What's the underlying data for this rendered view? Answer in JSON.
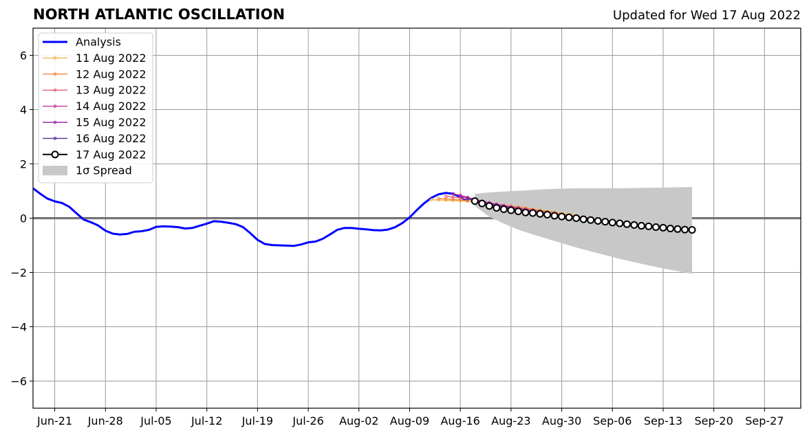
{
  "chart_data": {
    "type": "line",
    "title": "NORTH ATLANTIC OSCILLATION",
    "subtitle": "Updated for Wed 17 Aug 2022",
    "xlabel": "",
    "ylabel": "",
    "ylim": [
      -7,
      7
    ],
    "yticks": [
      -6,
      -4,
      -2,
      0,
      2,
      4,
      6
    ],
    "ytick_labels": [
      "−6",
      "−4",
      "−2",
      "0",
      "2",
      "4",
      "6"
    ],
    "xlim": [
      "2022-06-18",
      "2022-10-02"
    ],
    "xticks": [
      "2022-06-21",
      "2022-06-28",
      "2022-07-05",
      "2022-07-12",
      "2022-07-19",
      "2022-07-26",
      "2022-08-02",
      "2022-08-09",
      "2022-08-16",
      "2022-08-23",
      "2022-08-30",
      "2022-09-06",
      "2022-09-13",
      "2022-09-20",
      "2022-09-27"
    ],
    "xtick_labels": [
      "Jun-21",
      "Jun-28",
      "Jul-05",
      "Jul-12",
      "Jul-19",
      "Jul-26",
      "Aug-02",
      "Aug-09",
      "Aug-16",
      "Aug-23",
      "Aug-30",
      "Sep-06",
      "Sep-13",
      "Sep-20",
      "Sep-27"
    ],
    "grid": true,
    "legend_position": "top-left",
    "colors": {
      "analysis": "#0000ff",
      "spread": "#c8c8c8",
      "zero_line": "#555555",
      "grid": "#9a9a9a"
    },
    "analysis": {
      "name": "Analysis",
      "x": [
        "2022-06-18",
        "2022-06-19",
        "2022-06-20",
        "2022-06-21",
        "2022-06-22",
        "2022-06-23",
        "2022-06-24",
        "2022-06-25",
        "2022-06-26",
        "2022-06-27",
        "2022-06-28",
        "2022-06-29",
        "2022-06-30",
        "2022-07-01",
        "2022-07-02",
        "2022-07-03",
        "2022-07-04",
        "2022-07-05",
        "2022-07-06",
        "2022-07-07",
        "2022-07-08",
        "2022-07-09",
        "2022-07-10",
        "2022-07-11",
        "2022-07-12",
        "2022-07-13",
        "2022-07-14",
        "2022-07-15",
        "2022-07-16",
        "2022-07-17",
        "2022-07-18",
        "2022-07-19",
        "2022-07-20",
        "2022-07-21",
        "2022-07-22",
        "2022-07-23",
        "2022-07-24",
        "2022-07-25",
        "2022-07-26",
        "2022-07-27",
        "2022-07-28",
        "2022-07-29",
        "2022-07-30",
        "2022-07-31",
        "2022-08-01",
        "2022-08-02",
        "2022-08-03",
        "2022-08-04",
        "2022-08-05",
        "2022-08-06",
        "2022-08-07",
        "2022-08-08",
        "2022-08-09",
        "2022-08-10",
        "2022-08-11",
        "2022-08-12",
        "2022-08-13",
        "2022-08-14",
        "2022-08-15",
        "2022-08-16",
        "2022-08-17"
      ],
      "y": [
        1.1,
        0.9,
        0.72,
        0.62,
        0.56,
        0.42,
        0.18,
        -0.05,
        -0.15,
        -0.27,
        -0.46,
        -0.57,
        -0.6,
        -0.58,
        -0.5,
        -0.48,
        -0.43,
        -0.32,
        -0.3,
        -0.31,
        -0.33,
        -0.38,
        -0.36,
        -0.28,
        -0.2,
        -0.11,
        -0.13,
        -0.17,
        -0.22,
        -0.33,
        -0.55,
        -0.8,
        -0.95,
        -0.99,
        -1.0,
        -1.01,
        -1.02,
        -0.97,
        -0.89,
        -0.86,
        -0.76,
        -0.6,
        -0.43,
        -0.36,
        -0.36,
        -0.39,
        -0.41,
        -0.44,
        -0.45,
        -0.42,
        -0.33,
        -0.18,
        0.03,
        0.3,
        0.55,
        0.75,
        0.88,
        0.93,
        0.9,
        0.78,
        0.62
      ]
    },
    "forecasts": [
      {
        "name": "11 Aug 2022",
        "color": "#f5b34a",
        "x_start": "2022-08-12",
        "y": [
          0.68,
          0.67,
          0.66,
          0.65,
          0.64,
          0.63,
          0.61,
          0.58,
          0.54,
          0.51,
          0.48,
          0.45,
          0.42,
          0.38,
          0.34,
          0.3,
          0.26,
          0.22,
          0.18,
          0.14,
          0.1
        ]
      },
      {
        "name": "12 Aug 2022",
        "color": "#f0873e",
        "x_start": "2022-08-13",
        "y": [
          0.72,
          0.71,
          0.69,
          0.67,
          0.64,
          0.6,
          0.56,
          0.52,
          0.49,
          0.46,
          0.43,
          0.4,
          0.36,
          0.32,
          0.28,
          0.24,
          0.2,
          0.16,
          0.12,
          0.08,
          0.04
        ]
      },
      {
        "name": "13 Aug 2022",
        "color": "#e06070",
        "x_start": "2022-08-14",
        "y": [
          0.8,
          0.78,
          0.74,
          0.7,
          0.65,
          0.6,
          0.55,
          0.51,
          0.47,
          0.43,
          0.39,
          0.35,
          0.31,
          0.27,
          0.23,
          0.19,
          0.15,
          0.11,
          0.07,
          0.03,
          0.0
        ]
      },
      {
        "name": "14 Aug 2022",
        "color": "#c23b9c",
        "x_start": "2022-08-15",
        "y": [
          0.9,
          0.84,
          0.77,
          0.7,
          0.63,
          0.57,
          0.52,
          0.47,
          0.42,
          0.37,
          0.32,
          0.27,
          0.22,
          0.17,
          0.13,
          0.09,
          0.05,
          0.01,
          -0.03,
          -0.06,
          -0.09,
          -0.12,
          -0.15,
          -0.17,
          -0.2,
          -0.22,
          -0.24,
          -0.26
        ]
      },
      {
        "name": "15 Aug 2022",
        "color": "#9a2aa8",
        "x_start": "2022-08-16",
        "y": [
          0.82,
          0.74,
          0.66,
          0.6,
          0.54,
          0.49,
          0.44,
          0.39,
          0.34,
          0.29,
          0.24,
          0.19,
          0.15,
          0.11,
          0.07,
          0.03,
          -0.01,
          -0.05,
          -0.08,
          -0.11,
          -0.14,
          -0.17,
          -0.2,
          -0.23,
          -0.25,
          -0.27,
          -0.28
        ]
      },
      {
        "name": "16 Aug 2022",
        "color": "#5a2a9a",
        "x_start": "2022-08-17",
        "y": [
          0.72,
          0.64,
          0.57,
          0.51,
          0.45,
          0.4,
          0.35,
          0.3,
          0.25,
          0.2,
          0.16,
          0.12,
          0.08,
          0.04,
          0.0,
          -0.04,
          -0.08,
          -0.11,
          -0.14,
          -0.17,
          -0.2,
          -0.23,
          -0.26,
          -0.28,
          -0.3,
          -0.32
        ]
      },
      {
        "name": "17 Aug 2022",
        "color": "#000000",
        "x_start": "2022-08-18",
        "y": [
          0.63,
          0.54,
          0.45,
          0.38,
          0.33,
          0.29,
          0.25,
          0.21,
          0.19,
          0.16,
          0.13,
          0.09,
          0.06,
          0.03,
          0.0,
          -0.04,
          -0.07,
          -0.1,
          -0.13,
          -0.16,
          -0.19,
          -0.22,
          -0.25,
          -0.28,
          -0.3,
          -0.33,
          -0.35,
          -0.38,
          -0.4,
          -0.42,
          -0.43
        ]
      }
    ],
    "spread": {
      "name": "1σ Spread",
      "x": [
        "2022-08-18",
        "2022-08-20",
        "2022-08-22",
        "2022-08-24",
        "2022-08-26",
        "2022-08-28",
        "2022-08-30",
        "2022-09-01",
        "2022-09-03",
        "2022-09-05",
        "2022-09-07",
        "2022-09-09",
        "2022-09-11",
        "2022-09-13",
        "2022-09-15",
        "2022-09-17"
      ],
      "upper": [
        0.9,
        0.95,
        0.98,
        1.01,
        1.04,
        1.07,
        1.09,
        1.1,
        1.1,
        1.1,
        1.1,
        1.11,
        1.12,
        1.13,
        1.14,
        1.15
      ],
      "lower": [
        0.45,
        0.05,
        -0.2,
        -0.42,
        -0.6,
        -0.76,
        -0.92,
        -1.08,
        -1.22,
        -1.36,
        -1.5,
        -1.62,
        -1.74,
        -1.85,
        -1.95,
        -2.05
      ]
    },
    "legend_labels": [
      "Analysis",
      "11 Aug 2022",
      "12 Aug 2022",
      "13 Aug 2022",
      "14 Aug 2022",
      "15 Aug 2022",
      "16 Aug 2022",
      "17 Aug 2022",
      "1σ Spread"
    ]
  }
}
